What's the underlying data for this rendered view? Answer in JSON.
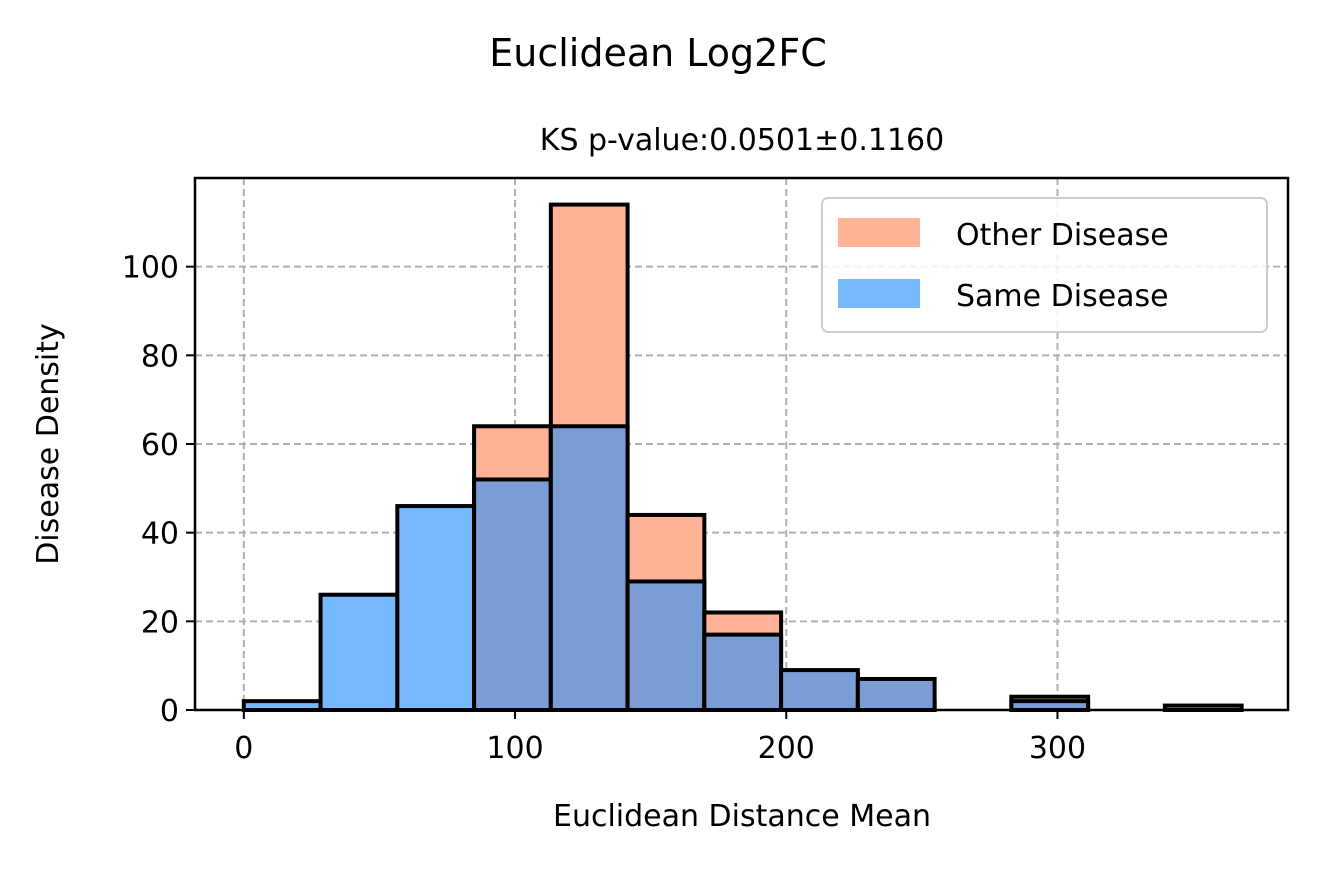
{
  "chart_data": {
    "type": "bar",
    "suptitle": "Euclidean Log2FC",
    "title": "KS p-value:0.0501±0.1160",
    "xlabel": "Euclidean Distance Mean",
    "ylabel": "Disease Density",
    "xlim": [
      -18,
      385
    ],
    "ylim": [
      0,
      120
    ],
    "xticks": [
      0,
      100,
      200,
      300
    ],
    "yticks": [
      0,
      20,
      40,
      60,
      80,
      100
    ],
    "grid": true,
    "legend_position": "top-right",
    "bin_edges": [
      0,
      28.3,
      56.6,
      84.9,
      113.2,
      141.5,
      169.8,
      198.1,
      226.4,
      254.7,
      283.0,
      311.3,
      339.6,
      367.9
    ],
    "series": [
      {
        "name": "Other Disease",
        "color": "#ffb295",
        "values": [
          0,
          0,
          0,
          64,
          114,
          44,
          22,
          8,
          2,
          0,
          3,
          0,
          1
        ]
      },
      {
        "name": "Same Disease",
        "color": "#77b9ff",
        "values": [
          2,
          26,
          46,
          52,
          64,
          29,
          17,
          9,
          7,
          0,
          2,
          0,
          0
        ]
      }
    ],
    "overlap_color": "#7a9dd6"
  }
}
